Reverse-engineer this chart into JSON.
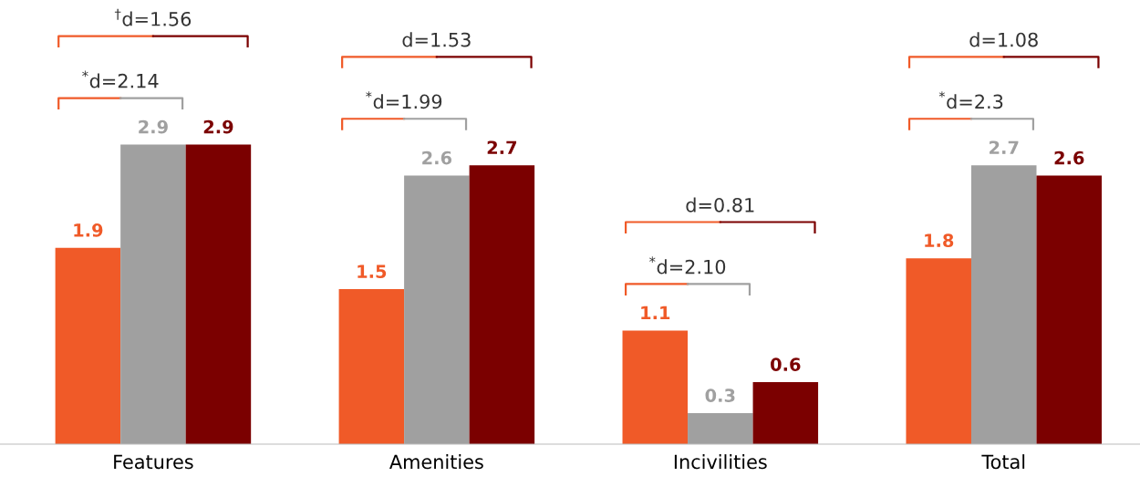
{
  "chart_data": {
    "type": "bar",
    "categories": [
      "Features",
      "Amenities",
      "Incivilities",
      "Total"
    ],
    "series": [
      {
        "color": "#f05a28",
        "values": [
          1.9,
          1.5,
          1.1,
          1.8
        ]
      },
      {
        "color": "#a0a0a0",
        "values": [
          2.9,
          2.6,
          0.3,
          2.7
        ]
      },
      {
        "color": "#7b0000",
        "values": [
          2.9,
          2.7,
          0.6,
          2.6
        ]
      }
    ],
    "data_labels": true,
    "grid": false,
    "legend": false,
    "annotations": [
      "$^{*}$d=2.14",
      "$^{†}$d=1.56",
      "$^{*}$d=1.99",
      "d=1.53",
      "$^{*}$d=2.10",
      "d=0.81",
      "$^{*}$d=2.3",
      "d=1.08"
    ]
  }
}
